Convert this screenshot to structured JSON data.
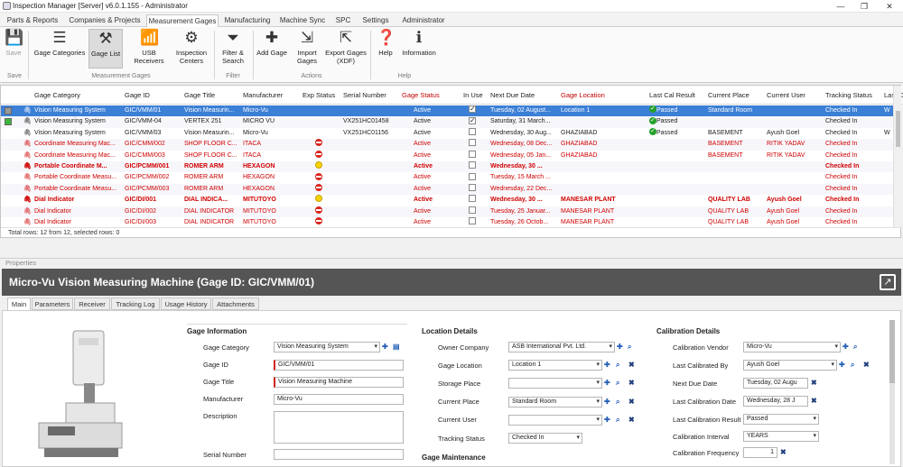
{
  "window": {
    "title": "Inspection Manager [Server] v6.0.1.155 - Administrator",
    "min": "—",
    "max": "❐",
    "close": "✕"
  },
  "menu": {
    "tabs": [
      "Parts & Reports",
      "Companies & Projects",
      "Measurement Gages",
      "Manufacturing",
      "Machine Sync",
      "SPC",
      "Settings",
      "Administrator"
    ]
  },
  "ribbon": {
    "save": "Save",
    "gage_categories": "Gage Categories",
    "gage_list": "Gage List",
    "usb_receivers": "USB Receivers",
    "inspection_centers": "Inspection Centers",
    "filter_search": "Filter & Search",
    "add_gage": "Add Gage",
    "import_gages": "Import Gages",
    "export_gages": "Export Gages (XDF)",
    "help": "Help",
    "information": "Information",
    "groups": {
      "save": "Save",
      "gages": "Measurement Gages",
      "filter": "Filter",
      "actions": "Actions",
      "help": "Help"
    }
  },
  "grid": {
    "columns": [
      "Gage Category",
      "Gage ID",
      "Gage Title",
      "Manufacturer",
      "Exp Status",
      "Serial Number",
      "Gage Status",
      "In Use",
      "Next Due Date",
      "Gage Location",
      "Last Cal Result",
      "Current Place",
      "Current User",
      "Tracking Status",
      "Last C"
    ],
    "rows": [
      {
        "cat": "Vision Measuring System",
        "id": "GIC/VMM/01",
        "title": "Vision Measurin...",
        "mfr": "Micro-Vu",
        "exp": "",
        "serial": "",
        "status": "Active",
        "inuse": true,
        "due": "Tuesday, 02 August...",
        "loc": "Location 1",
        "cal": "Passed",
        "place": "Standard Room",
        "user": "",
        "track": "Checked In",
        "lastc": "W"
      },
      {
        "cat": "Vision Measuring System",
        "id": "GIC/VMM-04",
        "title": "VERTEX 251",
        "mfr": "MICRO VU",
        "exp": "",
        "serial": "VX251HC01458",
        "status": "Active",
        "inuse": true,
        "due": "Saturday, 31 March...",
        "loc": "",
        "cal": "Passed",
        "place": "",
        "user": "",
        "track": "Checked In",
        "lastc": ""
      },
      {
        "cat": "Vision Measuring System",
        "id": "GIC/VMM/03",
        "title": "Vision Measurin...",
        "mfr": "Micro-Vu",
        "exp": "",
        "serial": "VX251HC01156",
        "status": "Active",
        "inuse": false,
        "due": "Wednesday, 30 Aug...",
        "loc": "GHAZIABAD",
        "cal": "Passed",
        "place": "BASEMENT",
        "user": "Ayush  Goel",
        "track": "Checked In",
        "lastc": "W"
      },
      {
        "cat": "Coordinate Measuring Mac...",
        "id": "GIC/CMM/002",
        "title": "SHOP FLOOR C...",
        "mfr": "ITACA",
        "exp": "red",
        "serial": "",
        "status": "Active",
        "inuse": false,
        "due": "Wednesday, 08 Dec...",
        "loc": "GHAZIABAD",
        "cal": "",
        "place": "BASEMENT",
        "user": "RITIK YADAV",
        "track": "Checked In",
        "lastc": ""
      },
      {
        "cat": "Coordinate Measuring Mac...",
        "id": "GIC/CMM/003",
        "title": "SHOP FLOOR C...",
        "mfr": "ITACA",
        "exp": "red",
        "serial": "",
        "status": "Active",
        "inuse": false,
        "due": "Wednesday, 05 Jan...",
        "loc": "GHAZIABAD",
        "cal": "",
        "place": "BASEMENT",
        "user": "RITIK YADAV",
        "track": "Checked In",
        "lastc": ""
      },
      {
        "cat": "Portable Coordinate M...",
        "id": "GIC/PCMM/001",
        "title": "ROMER ARM",
        "mfr": "HEXAGON",
        "exp": "yel",
        "serial": "",
        "status": "Active",
        "inuse": false,
        "due": "Wednesday, 30 ...",
        "loc": "",
        "cal": "",
        "place": "",
        "user": "",
        "track": "Checked In",
        "lastc": ""
      },
      {
        "cat": "Portable Coordinate Measu...",
        "id": "GIC/PCMM/002",
        "title": "ROMER ARM",
        "mfr": "HEXAGON",
        "exp": "red",
        "serial": "",
        "status": "Active",
        "inuse": false,
        "due": "Tuesday, 15 March ...",
        "loc": "",
        "cal": "",
        "place": "",
        "user": "",
        "track": "Checked In",
        "lastc": ""
      },
      {
        "cat": "Portable Coordinate Measu...",
        "id": "GIC/PCMM/003",
        "title": "ROMER ARM",
        "mfr": "HEXAGON",
        "exp": "red",
        "serial": "",
        "status": "Active",
        "inuse": false,
        "due": "Wednesday, 22 Dec...",
        "loc": "",
        "cal": "",
        "place": "",
        "user": "",
        "track": "Checked In",
        "lastc": ""
      },
      {
        "cat": "Dial Indicator",
        "id": "GIC/DI/001",
        "title": "DIAL INDICA...",
        "mfr": "MITUTOYO",
        "exp": "yel",
        "serial": "",
        "status": "Active",
        "inuse": false,
        "due": "Wednesday, 30 ...",
        "loc": "MANESAR PLANT",
        "cal": "",
        "place": "QUALITY LAB",
        "user": "Ayush  Goel",
        "track": "Checked In",
        "lastc": ""
      },
      {
        "cat": "Dial Indicator",
        "id": "GIC/DI/002",
        "title": "DIAL INDICATOR",
        "mfr": "MITUTOYO",
        "exp": "red",
        "serial": "",
        "status": "Active",
        "inuse": false,
        "due": "Tuesday, 25 Januar...",
        "loc": "MANESAR PLANT",
        "cal": "",
        "place": "QUALITY LAB",
        "user": "Ayush  Goel",
        "track": "Checked In",
        "lastc": ""
      },
      {
        "cat": "Dial Indicator",
        "id": "GIC/DI/003",
        "title": "DIAL INDICATOR",
        "mfr": "MITUTOYO",
        "exp": "red",
        "serial": "",
        "status": "Active",
        "inuse": false,
        "due": "Tuesday, 26 Octob...",
        "loc": "MANESAR PLANT",
        "cal": "",
        "place": "QUALITY LAB",
        "user": "Ayush  Goel",
        "track": "Checked In",
        "lastc": ""
      }
    ],
    "footer": "Total rows: 12 from 12, selected rows: 0"
  },
  "properties": {
    "label": "Properties",
    "header": "Micro-Vu Vision Measuring Machine (Gage ID: GIC/VMM/01)",
    "tabs": [
      "Main",
      "Parameters",
      "Receiver",
      "Tracking Log",
      "Usage History",
      "Attachments"
    ],
    "gage_info": {
      "title": "Gage Information",
      "category_label": "Gage Category",
      "category": "Vision Measuring System",
      "id_label": "Gage ID",
      "id": "GIC/VMM/01",
      "title_label": "Gage Title",
      "gage_title": "Vision Measuring Machine",
      "mfr_label": "Manufacturer",
      "mfr": "Micro-Vu",
      "desc_label": "Description",
      "serial_label": "Serial Number"
    },
    "location": {
      "title": "Location Details",
      "owner_label": "Owner Company",
      "owner": "ASB International Pvt. Ltd.",
      "loc_label": "Gage Location",
      "loc": "Location 1",
      "storage_label": "Storage Place",
      "place_label": "Current Place",
      "place": "Standard Room",
      "user_label": "Current User",
      "tracking_label": "Tracking Status",
      "tracking": "Checked In",
      "maint": "Gage Maintenance"
    },
    "calibration": {
      "title": "Calibration Details",
      "vendor_label": "Calibration Vendor",
      "vendor": "Micro-Vu",
      "lastby_label": "Last Calibrated By",
      "lastby": "Ayush  Goel",
      "due_label": "Next Due Date",
      "due": "Tuesday, 02 Augu",
      "lastdate_label": "Last Calibration Date",
      "lastdate": "Wednesday, 28 J",
      "result_label": "Last Calibration Result",
      "result": "Passed",
      "interval_label": "Calibration Interval",
      "interval": "YEARS",
      "freq_label": "Calibration Frequency",
      "freq": "1"
    }
  }
}
